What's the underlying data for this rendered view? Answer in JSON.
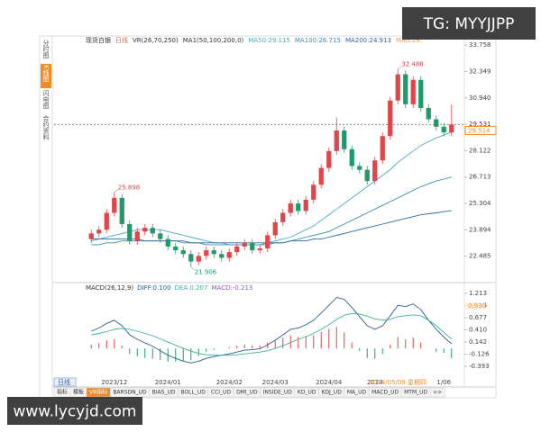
{
  "chart_data": {
    "type": "candlestick",
    "title": "现货白银",
    "period": "日线",
    "header_items": [
      "VR(26,70,250)",
      "MA1(50,100,200,0)"
    ],
    "header_tail": "MA0:29.",
    "separator": ":",
    "candles": {
      "open": [
        23.4,
        23.7,
        23.9,
        24.8,
        25.6,
        24.2,
        23.3,
        23.8,
        24.0,
        23.7,
        23.4,
        23.0,
        22.8,
        22.6,
        22.2,
        22.5,
        22.8,
        22.6,
        22.4,
        22.7,
        23.0,
        23.2,
        22.8,
        22.9,
        23.6,
        24.3,
        24.8,
        25.3,
        24.9,
        25.5,
        26.3,
        27.2,
        28.1,
        29.2,
        28.2,
        27.3,
        27.1,
        26.5,
        27.6,
        28.9,
        30.8,
        32.2,
        30.6,
        31.9,
        30.4,
        29.8,
        29.4,
        29.1
      ],
      "high": [
        23.9,
        24.1,
        25.0,
        25.898,
        25.8,
        24.4,
        24.0,
        24.2,
        24.2,
        23.9,
        23.6,
        23.2,
        23.0,
        22.8,
        22.7,
        23.0,
        23.0,
        22.8,
        22.9,
        23.2,
        23.4,
        23.4,
        23.1,
        23.8,
        24.5,
        25.0,
        25.5,
        25.5,
        25.7,
        26.5,
        27.4,
        28.3,
        29.9,
        29.4,
        28.4,
        27.5,
        27.3,
        27.8,
        29.1,
        31.0,
        32.488,
        32.4,
        32.1,
        32.1,
        30.6,
        30.0,
        29.6,
        30.6
      ],
      "low": [
        23.2,
        23.5,
        23.7,
        24.6,
        24.0,
        23.1,
        23.1,
        23.6,
        23.5,
        23.2,
        22.8,
        22.6,
        22.4,
        21.906,
        22.0,
        22.3,
        22.4,
        22.2,
        22.2,
        22.5,
        22.8,
        22.6,
        22.6,
        22.7,
        23.4,
        24.1,
        24.6,
        24.7,
        24.7,
        25.3,
        26.1,
        27.0,
        27.9,
        28.0,
        27.1,
        26.9,
        26.3,
        26.3,
        27.4,
        28.7,
        30.6,
        30.4,
        30.4,
        30.2,
        29.6,
        29.2,
        28.9,
        28.9
      ],
      "close": [
        23.7,
        23.9,
        24.8,
        25.6,
        24.2,
        23.3,
        23.8,
        24.0,
        23.7,
        23.4,
        23.0,
        22.8,
        22.6,
        22.2,
        22.5,
        22.8,
        22.6,
        22.4,
        22.7,
        23.0,
        23.2,
        22.8,
        22.9,
        23.6,
        24.3,
        24.8,
        25.3,
        24.9,
        25.5,
        26.3,
        27.2,
        28.1,
        29.2,
        28.2,
        27.3,
        27.1,
        26.5,
        27.6,
        28.9,
        30.8,
        32.2,
        30.6,
        31.9,
        30.4,
        29.8,
        29.4,
        29.1,
        29.514
      ]
    },
    "up_color": "#e0454a",
    "down_color": "#1f9a6a",
    "annotations": [
      {
        "candle": 3,
        "kind": "high"
      },
      {
        "candle": 13,
        "kind": "low"
      },
      {
        "candle": 40,
        "kind": "high"
      }
    ],
    "ylim": [
      21.17,
      34.15
    ],
    "yticks": [
      33.758,
      32.349,
      {
        "value": 30.94,
        "label": "30.940"
      },
      29.531,
      28.122,
      26.713,
      25.304,
      23.894,
      22.485
    ],
    "series": [
      {
        "name": "MA50",
        "color": "#49a9c2",
        "values": [
          23.3,
          23.4,
          23.5,
          23.6,
          23.7,
          23.8,
          23.9,
          23.9,
          23.9,
          23.9,
          23.8,
          23.7,
          23.6,
          23.5,
          23.4,
          23.3,
          23.2,
          23.2,
          23.1,
          23.1,
          23.1,
          23.1,
          23.1,
          23.2,
          23.3,
          23.4,
          23.5,
          23.7,
          23.9,
          24.1,
          24.4,
          24.7,
          25.0,
          25.3,
          25.6,
          25.9,
          26.2,
          26.5,
          26.8,
          27.1,
          27.5,
          27.8,
          28.1,
          28.4,
          28.6,
          28.8,
          28.95,
          29.115
        ]
      },
      {
        "name": "MA100",
        "color": "#3a8fb5",
        "values": [
          23.1,
          23.1,
          23.2,
          23.2,
          23.3,
          23.3,
          23.3,
          23.3,
          23.3,
          23.3,
          23.3,
          23.3,
          23.2,
          23.2,
          23.2,
          23.1,
          23.1,
          23.1,
          23.1,
          23.1,
          23.1,
          23.1,
          23.1,
          23.1,
          23.2,
          23.2,
          23.3,
          23.4,
          23.5,
          23.6,
          23.7,
          23.8,
          24.0,
          24.2,
          24.4,
          24.6,
          24.8,
          25.0,
          25.2,
          25.4,
          25.6,
          25.8,
          26.0,
          26.2,
          26.35,
          26.5,
          26.6,
          26.715
        ]
      },
      {
        "name": "MA200",
        "color": "#2c6aa0",
        "values": [
          23.4,
          23.4,
          23.4,
          23.4,
          23.4,
          23.4,
          23.4,
          23.3,
          23.3,
          23.3,
          23.3,
          23.3,
          23.3,
          23.2,
          23.2,
          23.2,
          23.2,
          23.2,
          23.2,
          23.2,
          23.2,
          23.2,
          23.2,
          23.2,
          23.2,
          23.2,
          23.3,
          23.3,
          23.3,
          23.4,
          23.4,
          23.5,
          23.6,
          23.7,
          23.8,
          23.9,
          24.0,
          24.1,
          24.2,
          24.3,
          24.4,
          24.5,
          24.6,
          24.7,
          24.75,
          24.8,
          24.86,
          24.913
        ]
      }
    ],
    "date_ticks": [
      {
        "at": 3,
        "label": "2023/12"
      },
      {
        "at": 10,
        "label": "2024/01"
      },
      {
        "at": 18,
        "label": "2024/02"
      },
      {
        "at": 24,
        "label": "2024/03"
      },
      {
        "at": 31,
        "label": "2024/04"
      },
      {
        "at": 37,
        "label": "2024"
      },
      {
        "at": 46,
        "label": "1/06"
      }
    ],
    "crosshair": {
      "at": 40,
      "date": "2024/05/09 星期四"
    },
    "macd": {
      "title": "MACD(26,12,9)",
      "lines": [
        {
          "name": "DIFF",
          "color": "#2b5f8a",
          "last_label": "0.100",
          "values": [
            0.38,
            0.45,
            0.55,
            0.62,
            0.5,
            0.3,
            0.2,
            0.12,
            0.05,
            -0.05,
            -0.15,
            -0.22,
            -0.28,
            -0.32,
            -0.28,
            -0.22,
            -0.18,
            -0.15,
            -0.12,
            -0.08,
            -0.04,
            -0.03,
            -0.01,
            0.08,
            0.18,
            0.3,
            0.42,
            0.45,
            0.52,
            0.62,
            0.78,
            0.95,
            1.12,
            1.08,
            0.9,
            0.7,
            0.5,
            0.42,
            0.5,
            0.72,
            0.95,
            0.92,
            0.98,
            0.85,
            0.62,
            0.42,
            0.25,
            0.1
          ]
        },
        {
          "name": "DEA",
          "color": "#3fb0a0",
          "values": [
            0.3,
            0.33,
            0.37,
            0.42,
            0.44,
            0.42,
            0.38,
            0.33,
            0.28,
            0.21,
            0.14,
            0.07,
            0.0,
            -0.06,
            -0.11,
            -0.14,
            -0.15,
            -0.15,
            -0.15,
            -0.14,
            -0.12,
            -0.1,
            -0.08,
            -0.05,
            0.0,
            0.06,
            0.13,
            0.2,
            0.26,
            0.33,
            0.42,
            0.52,
            0.64,
            0.73,
            0.77,
            0.76,
            0.71,
            0.65,
            0.62,
            0.64,
            0.7,
            0.72,
            0.74,
            0.72,
            0.62,
            0.5,
            0.35,
            0.207
          ]
        }
      ],
      "hist": {
        "name": "MACD",
        "color": "#8a5cc0",
        "values": [
          0.08,
          0.12,
          0.18,
          0.2,
          0.06,
          -0.12,
          -0.18,
          -0.21,
          -0.23,
          -0.26,
          -0.29,
          -0.29,
          -0.28,
          -0.26,
          -0.17,
          -0.08,
          -0.03,
          0.0,
          0.03,
          0.06,
          0.08,
          0.07,
          0.07,
          0.13,
          0.18,
          0.24,
          0.29,
          0.25,
          0.26,
          0.29,
          0.36,
          0.43,
          0.48,
          0.35,
          0.13,
          -0.06,
          -0.21,
          -0.23,
          -0.12,
          0.08,
          0.25,
          0.2,
          0.24,
          0.13,
          0.0,
          -0.08,
          -0.1,
          -0.213
        ]
      },
      "ylim": [
        -0.81,
        1.37
      ],
      "yticks": [
        1.213,
        0.945,
        0.677,
        {
          "value": 0.41,
          "label": "0.410"
        },
        0.142,
        -0.126,
        -0.393
      ],
      "crosshair_value": 0.93,
      "crosshair_value_label": "0.930"
    },
    "sidebar": [
      "分时图",
      "K线图",
      "闪电图",
      "合约资料"
    ],
    "tabs": [
      "指标",
      "模板",
      "VR指标",
      "BARSDN_UD",
      "BIAS_UD",
      "BOLL_UD",
      "CCI_UD",
      "DMI_UD",
      "INSIDE_UD",
      "KD_UD",
      "KDJ_UD",
      "MA_UD",
      "MACD_UD",
      "MTM_UD",
      ">>"
    ],
    "watermarks": [
      "TG: MYYJJPP",
      "www.lycyjd.com"
    ]
  }
}
